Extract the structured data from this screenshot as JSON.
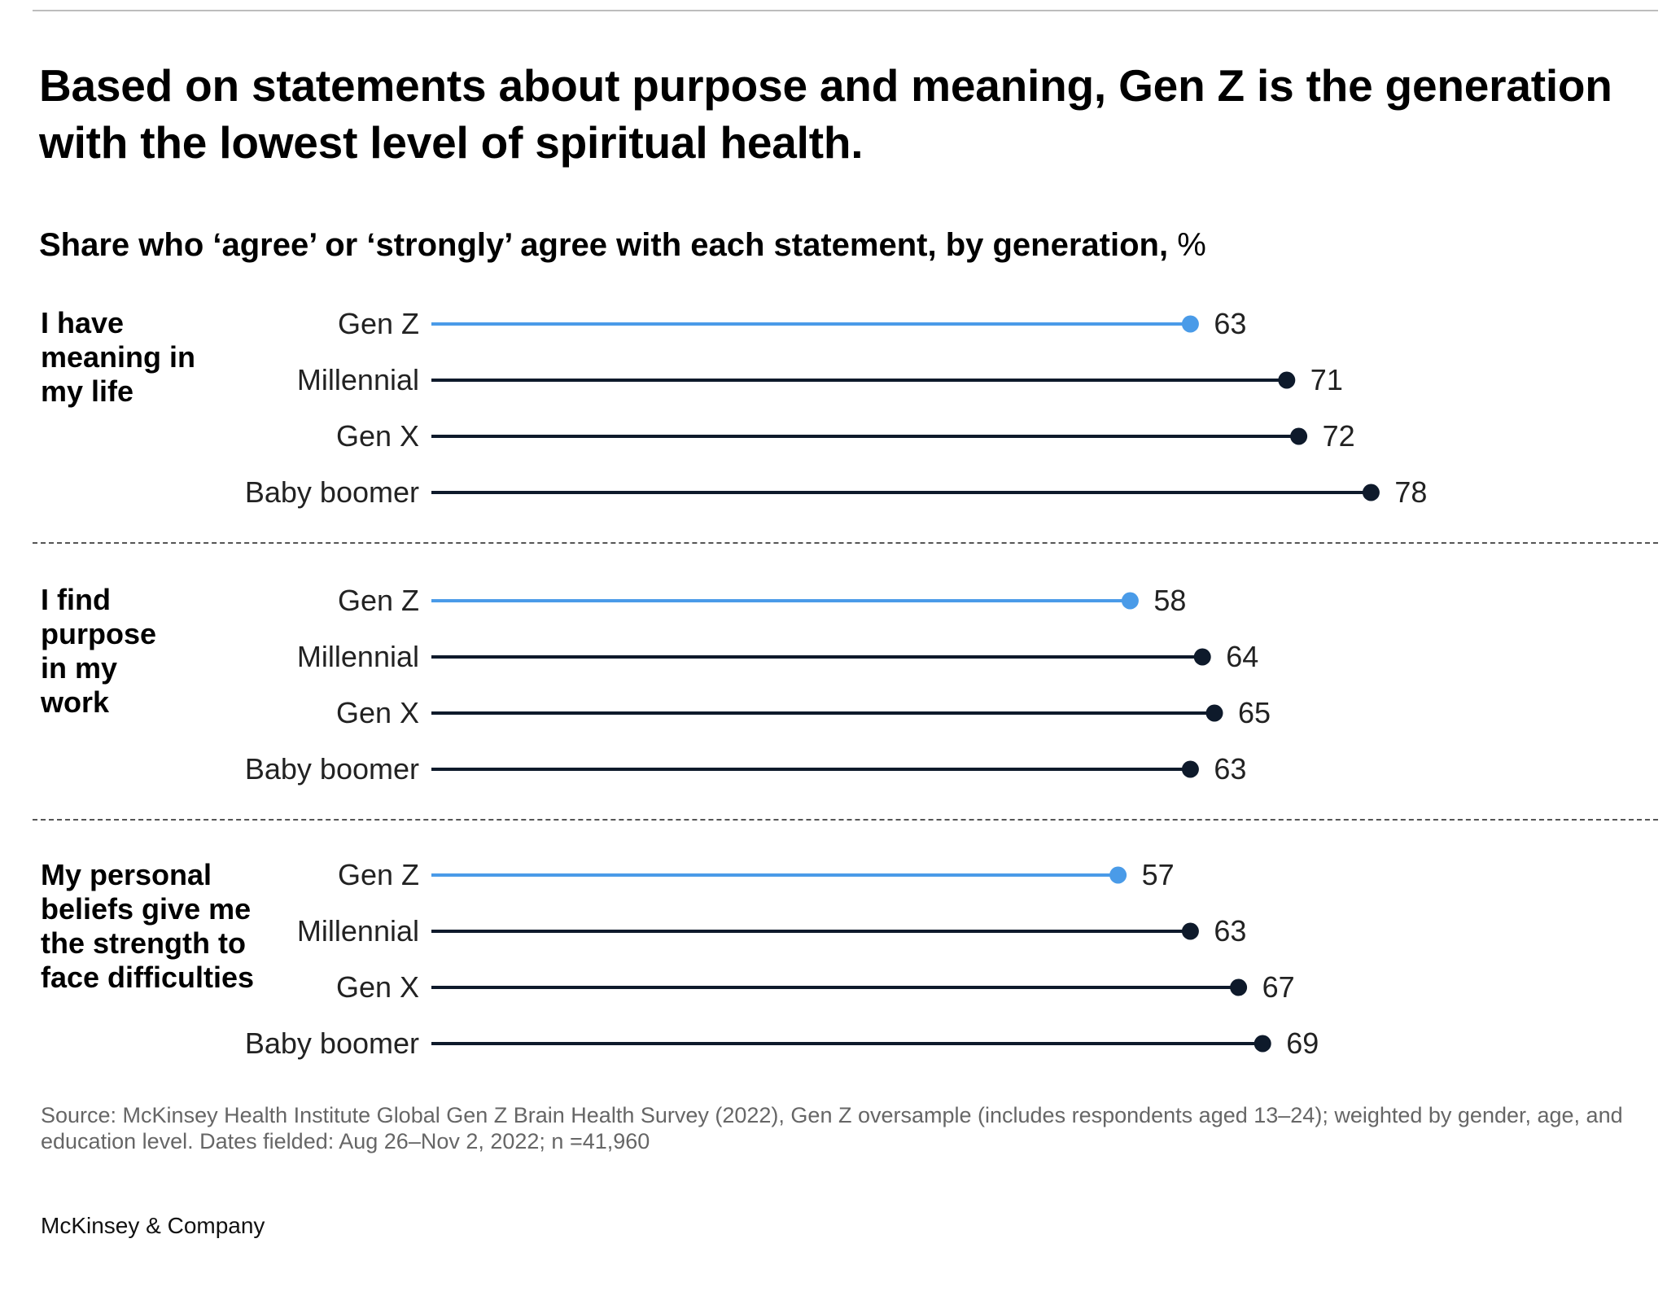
{
  "title": "Based on statements about purpose and meaning, Gen Z is the generation with the lowest level of spiritual health.",
  "subtitle": "Share who ‘agree’ or ‘strongly’ agree with each statement, by generation,",
  "subtitle_unit": "%",
  "source": "Source: McKinsey Health Institute Global Gen Z Brain Health Survey (2022), Gen Z oversample (includes respondents aged 13–24); weighted by gender, age, and education level. Dates fielded: Aug 26–Nov 2, 2022; n =41,960",
  "brand": "McKinsey & Company",
  "colors": {
    "highlight": "#4A9BE8",
    "default": "#0E1A2B"
  },
  "chart_data": {
    "type": "dot",
    "categories": [
      "Gen Z",
      "Millennial",
      "Gen X",
      "Baby boomer"
    ],
    "highlight_category": "Gen Z",
    "xlim": [
      0,
      100
    ],
    "groups": [
      {
        "label": "I have meaning in my life",
        "values": [
          63,
          71,
          72,
          78
        ]
      },
      {
        "label": "I find purpose in my work",
        "values": [
          58,
          64,
          65,
          63
        ]
      },
      {
        "label": "My personal beliefs give me the strength to face difficulties",
        "values": [
          57,
          63,
          67,
          69
        ]
      }
    ]
  }
}
